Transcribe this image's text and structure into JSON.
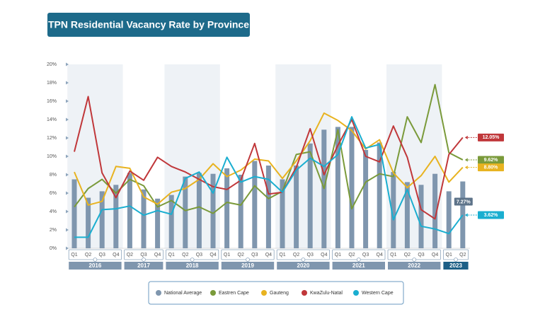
{
  "chart_data": {
    "type": "bar-line",
    "title": "TPN Residential Vacancy Rate by Province",
    "groups": [
      {
        "label": "2016",
        "categories": [
          "Q1",
          "Q2",
          "Q3",
          "Q4"
        ]
      },
      {
        "label": "2017",
        "categories": [
          "Q2",
          "Q3",
          "Q4"
        ]
      },
      {
        "label": "2018",
        "categories": [
          "Q1",
          "Q2",
          "Q3",
          "Q4"
        ]
      },
      {
        "label": "2019",
        "categories": [
          "Q1",
          "Q2",
          "Q3",
          "Q4"
        ]
      },
      {
        "label": "2020",
        "categories": [
          "Q1",
          "Q2",
          "Q3",
          "Q4"
        ]
      },
      {
        "label": "2021",
        "categories": [
          "Q1",
          "Q2",
          "Q3",
          "Q4"
        ]
      },
      {
        "label": "2022",
        "categories": [
          "Q1",
          "Q2",
          "Q3",
          "Q4"
        ]
      },
      {
        "label": "2023",
        "categories": [
          "Q1",
          "Q2"
        ]
      }
    ],
    "ylim": [
      0,
      20
    ],
    "yticks": [
      {
        "value": 0,
        "label": "0%"
      },
      {
        "value": 2,
        "label": "2%"
      },
      {
        "value": 4,
        "label": "4%"
      },
      {
        "value": 6,
        "label": "6%"
      },
      {
        "value": 8,
        "label": "8%"
      },
      {
        "value": 10,
        "label": "10%"
      },
      {
        "value": 12,
        "label": "12%"
      },
      {
        "value": 14,
        "label": "14%"
      },
      {
        "value": 16,
        "label": "16%"
      },
      {
        "value": 18,
        "label": "18%"
      },
      {
        "value": 20,
        "label": "20%"
      }
    ],
    "series": [
      {
        "name": "National Average",
        "type": "bar",
        "color": "#7f96ae",
        "values": [
          7.5,
          5.5,
          6.2,
          6.9,
          8.2,
          6.4,
          5.4,
          5.8,
          7.8,
          8.2,
          8.1,
          8.7,
          8.0,
          9.5,
          9.0,
          7.5,
          9.0,
          11.4,
          12.9,
          13.2,
          13.2,
          10.7,
          11.5,
          8.3,
          7.2,
          6.9,
          8.1,
          6.2,
          7.27
        ],
        "value_labels": [
          null,
          null,
          null,
          null,
          null,
          null,
          null,
          null,
          null,
          null,
          null,
          null,
          null,
          null,
          null,
          null,
          null,
          null,
          null,
          null,
          null,
          null,
          null,
          null,
          null,
          null,
          null,
          null,
          "7.27%"
        ]
      },
      {
        "name": "Eastren Cape",
        "type": "line",
        "color": "#7a9a3a",
        "values": [
          4.5,
          6.5,
          7.5,
          6.0,
          7.5,
          6.8,
          4.5,
          5.2,
          4.1,
          4.5,
          3.8,
          5.0,
          4.7,
          6.8,
          5.4,
          6.2,
          10.2,
          10.5,
          6.5,
          12.9,
          4.3,
          7.2,
          8.1,
          7.8,
          14.3,
          11.5,
          17.8,
          10.4,
          9.62
        ],
        "value_labels": [
          null,
          null,
          null,
          null,
          null,
          null,
          null,
          null,
          null,
          null,
          null,
          null,
          null,
          null,
          null,
          null,
          null,
          null,
          null,
          null,
          null,
          null,
          null,
          null,
          null,
          null,
          null,
          null,
          "9.62%"
        ]
      },
      {
        "name": "Gauteng",
        "type": "line",
        "color": "#e8b320",
        "values": [
          8.3,
          4.7,
          5.1,
          8.9,
          8.7,
          5.6,
          4.8,
          6.1,
          6.5,
          7.5,
          9.2,
          7.8,
          8.5,
          9.7,
          9.5,
          7.6,
          9.5,
          11.7,
          14.7,
          13.9,
          12.8,
          10.8,
          11.8,
          8.2,
          6.6,
          7.9,
          10.0,
          7.2,
          8.8
        ],
        "value_labels": [
          null,
          null,
          null,
          null,
          null,
          null,
          null,
          null,
          null,
          null,
          null,
          null,
          null,
          null,
          null,
          null,
          null,
          null,
          null,
          null,
          null,
          null,
          null,
          null,
          null,
          null,
          null,
          null,
          "8.80%"
        ]
      },
      {
        "name": "KwaZulu-Natal",
        "type": "line",
        "color": "#c0373a",
        "values": [
          10.5,
          16.5,
          8.2,
          5.5,
          8.4,
          7.4,
          9.9,
          8.9,
          8.3,
          7.5,
          6.7,
          6.4,
          7.4,
          11.4,
          5.9,
          6.1,
          8.8,
          13.0,
          8.0,
          11.2,
          14.0,
          10.0,
          9.4,
          13.3,
          9.9,
          4.2,
          3.2,
          10.2,
          12.05
        ],
        "value_labels": [
          null,
          null,
          null,
          null,
          null,
          null,
          null,
          null,
          null,
          null,
          null,
          null,
          null,
          null,
          null,
          null,
          null,
          null,
          null,
          null,
          null,
          null,
          null,
          null,
          null,
          null,
          null,
          null,
          "12.05%"
        ]
      },
      {
        "name": "Western Cape",
        "type": "line",
        "color": "#1aaed0",
        "values": [
          1.2,
          1.2,
          4.2,
          4.3,
          4.6,
          3.6,
          4.1,
          3.7,
          7.6,
          8.3,
          6.0,
          9.9,
          7.2,
          7.8,
          7.5,
          6.1,
          8.5,
          9.8,
          8.9,
          10.2,
          14.3,
          10.9,
          11.3,
          3.1,
          6.4,
          2.4,
          2.1,
          1.6,
          3.62
        ],
        "value_labels": [
          null,
          null,
          null,
          null,
          null,
          null,
          null,
          null,
          null,
          null,
          null,
          null,
          null,
          null,
          null,
          null,
          null,
          null,
          null,
          null,
          null,
          null,
          null,
          null,
          null,
          null,
          null,
          null,
          "3.62%"
        ]
      }
    ]
  }
}
